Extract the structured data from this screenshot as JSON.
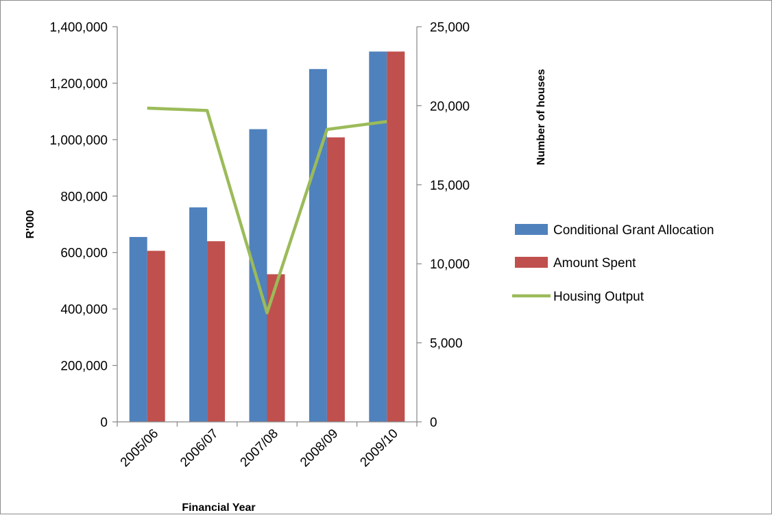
{
  "chart_data": {
    "type": "bar",
    "categories": [
      "2005/06",
      "2006/07",
      "2007/08",
      "2008/09",
      "2009/10"
    ],
    "series": [
      {
        "name": "Conditional Grant Allocation",
        "kind": "bar",
        "axis": "left",
        "color": "#4F81BD",
        "values": [
          655000,
          760000,
          1037000,
          1250000,
          1312000
        ]
      },
      {
        "name": "Amount Spent",
        "kind": "bar",
        "axis": "left",
        "color": "#C0504D",
        "values": [
          606000,
          640000,
          523000,
          1008000,
          1312000
        ]
      },
      {
        "name": "Housing Output",
        "kind": "line",
        "axis": "right",
        "color": "#9BBB59",
        "values": [
          19850,
          19700,
          6900,
          18500,
          19000
        ]
      }
    ],
    "xlabel": "Financial Year",
    "ylabel": "R'000",
    "y2label": "Number of houses",
    "ylim": [
      0,
      1400000
    ],
    "y2lim": [
      0,
      25000
    ],
    "yticks": [
      "0",
      "200,000",
      "400,000",
      "600,000",
      "800,000",
      "1,000,000",
      "1,200,000",
      "1,400,000"
    ],
    "y2ticks": [
      "0",
      "5,000",
      "10,000",
      "15,000",
      "20,000",
      "25,000"
    ],
    "legend_position": "right",
    "grid": false
  }
}
